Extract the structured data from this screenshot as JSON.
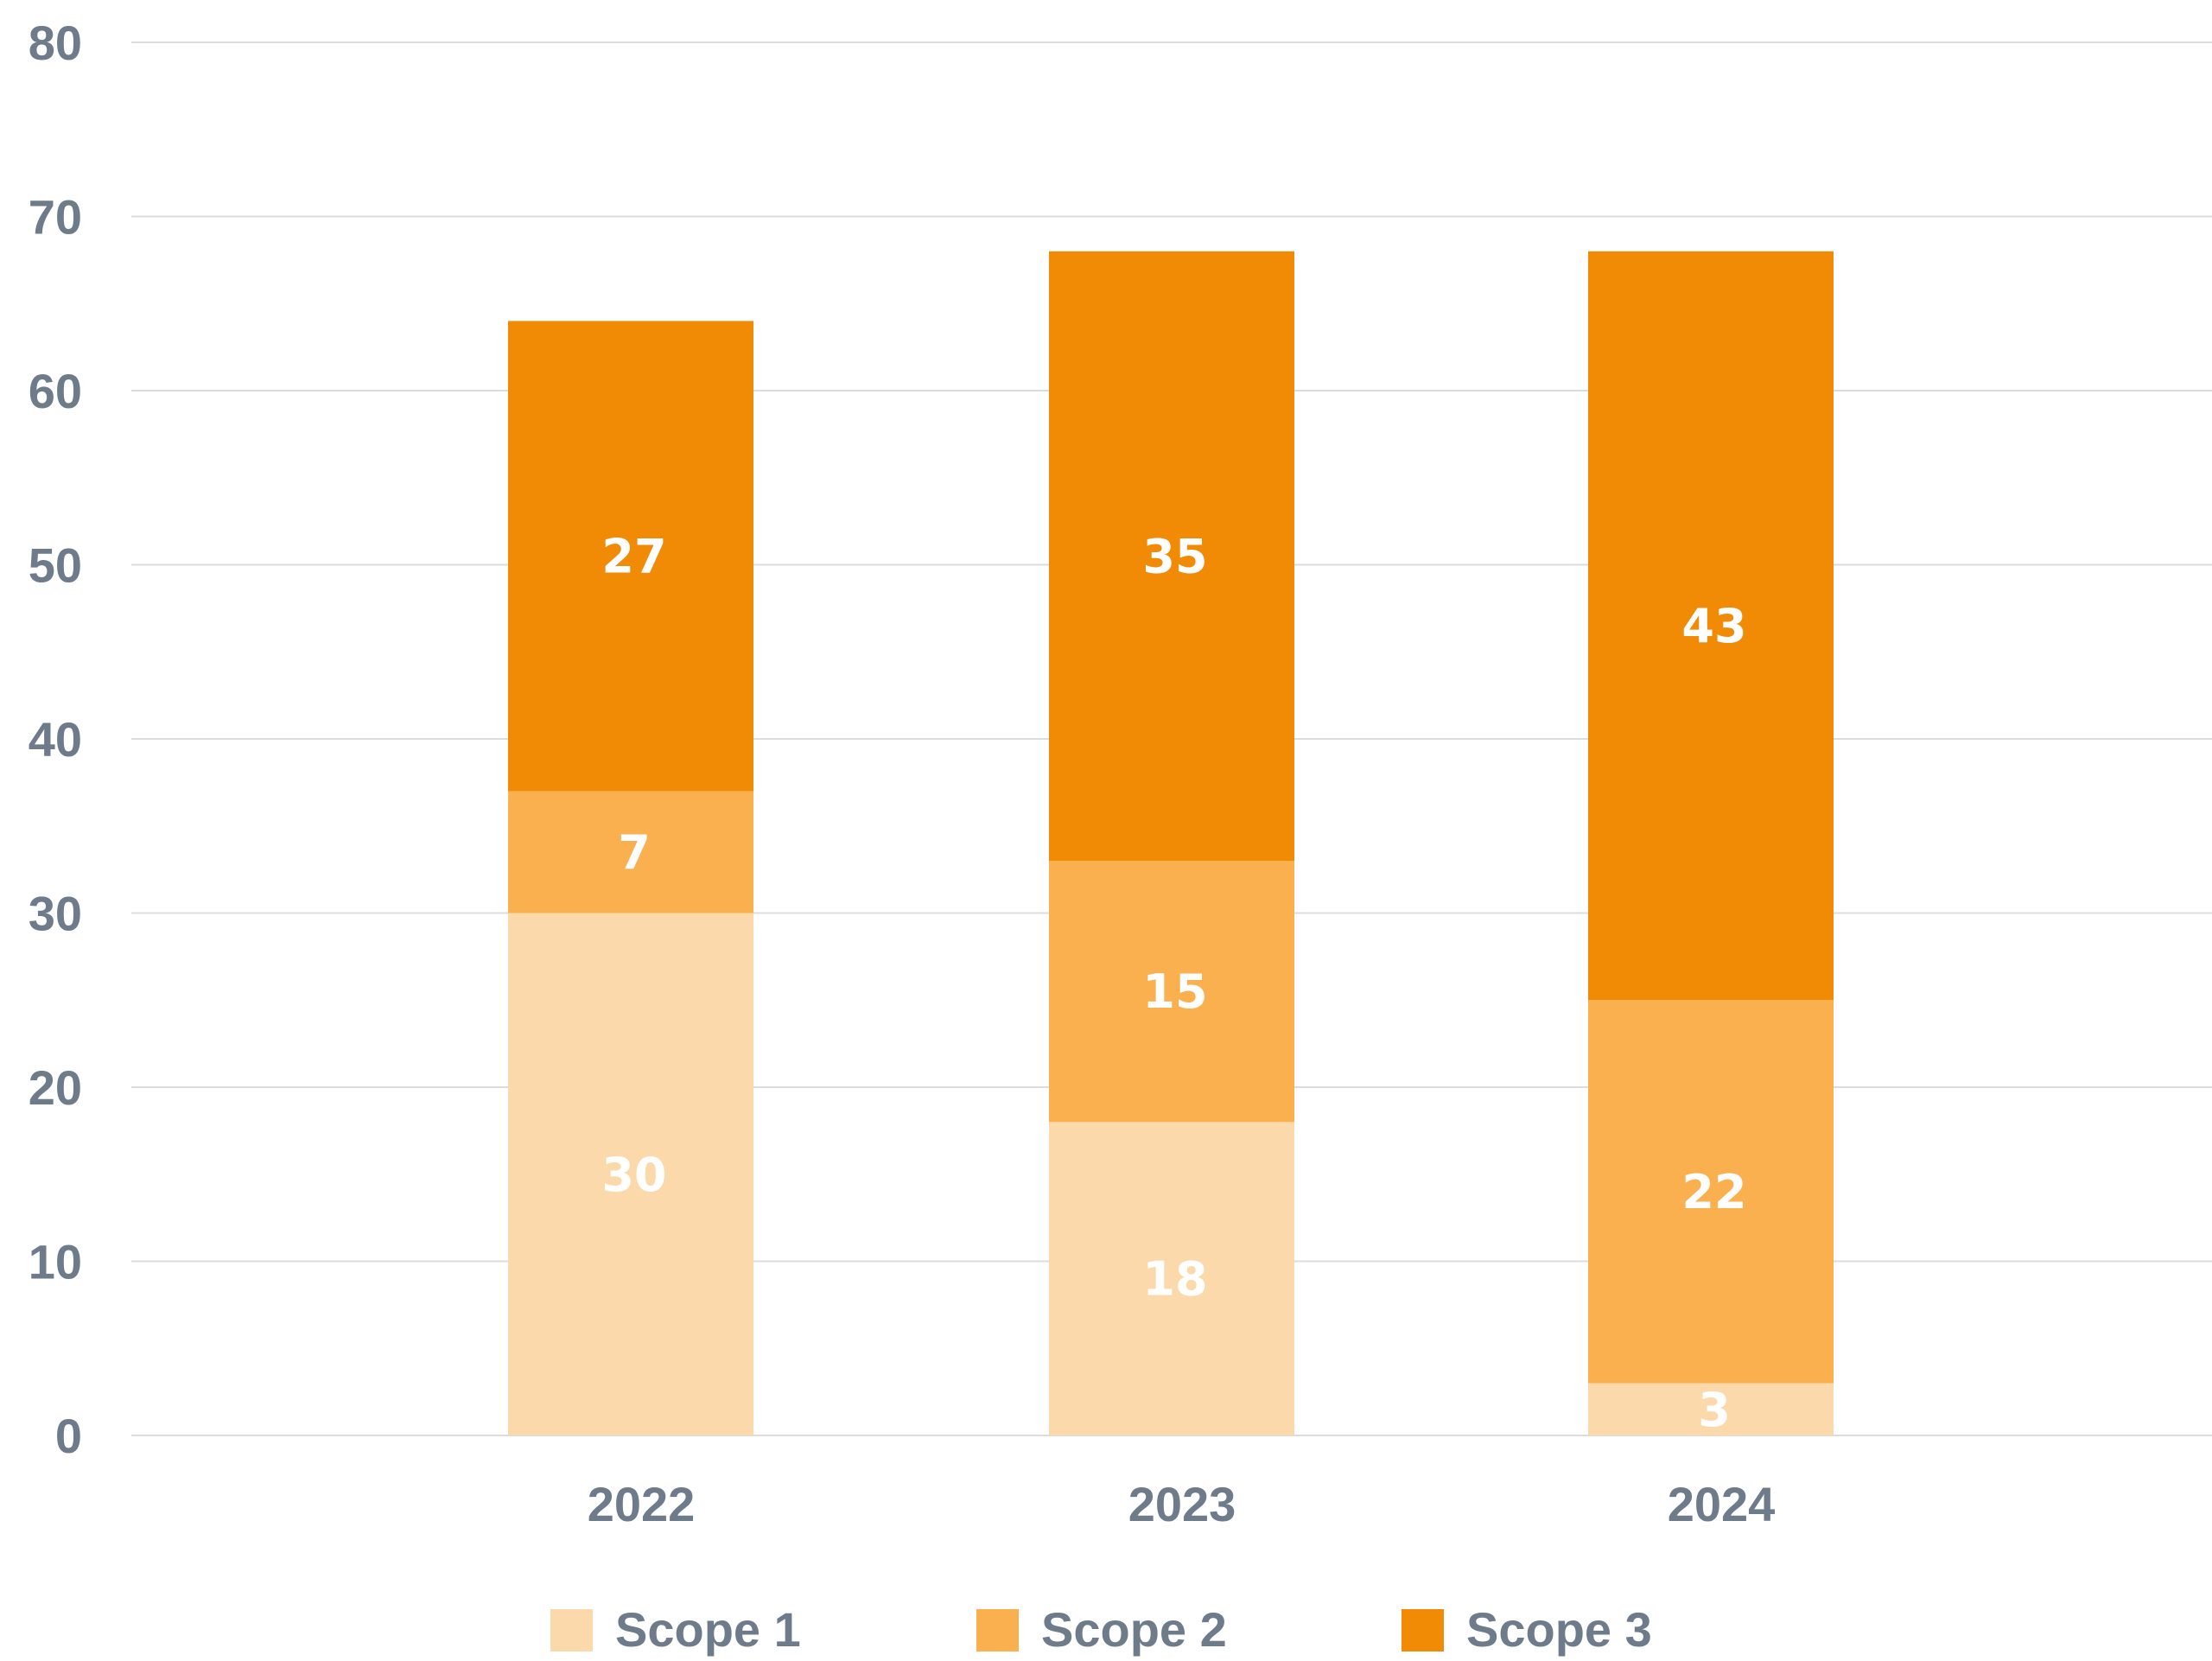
{
  "chart_data": {
    "type": "bar",
    "stacked": true,
    "categories": [
      "2022",
      "2023",
      "2024"
    ],
    "series": [
      {
        "name": "Scope 1",
        "color": "#fcd9aa",
        "values": [
          30,
          18,
          3
        ]
      },
      {
        "name": "Scope 2",
        "color": "#fab04e",
        "values": [
          7,
          15,
          22
        ]
      },
      {
        "name": "Scope 3",
        "color": "#f18a05",
        "values": [
          27,
          35,
          43
        ]
      }
    ],
    "ylim": [
      0,
      80
    ],
    "yticks": [
      0,
      10,
      20,
      30,
      40,
      50,
      60,
      70,
      80
    ],
    "grid": true,
    "legend": "bottom",
    "title": "",
    "xlabel": "",
    "ylabel": ""
  }
}
